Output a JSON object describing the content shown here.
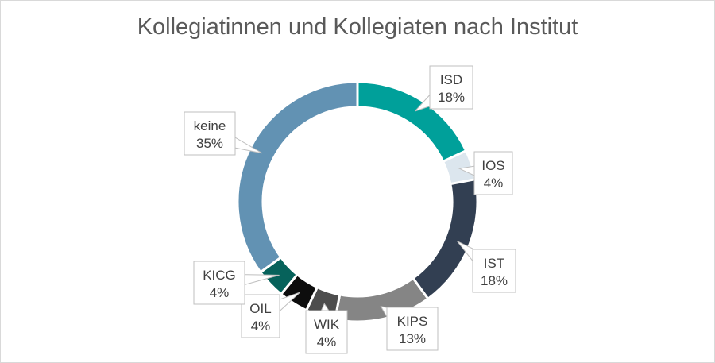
{
  "chart_data": {
    "type": "pie",
    "variant": "doughnut",
    "title": "Kollegiatinnen und Kollegiaten nach Institut",
    "legend": "none",
    "slices": [
      {
        "label": "ISD",
        "value": 18,
        "value_label": "18%",
        "color": "#00a09a"
      },
      {
        "label": "IOS",
        "value": 4,
        "value_label": "4%",
        "color": "#dce6ee"
      },
      {
        "label": "IST",
        "value": 18,
        "value_label": "18%",
        "color": "#323f52"
      },
      {
        "label": "KIPS",
        "value": 13,
        "value_label": "13%",
        "color": "#858585"
      },
      {
        "label": "WIK",
        "value": 4,
        "value_label": "4%",
        "color": "#4d4d4d"
      },
      {
        "label": "OIL",
        "value": 4,
        "value_label": "4%",
        "color": "#0d0d0d"
      },
      {
        "label": "KICG",
        "value": 4,
        "value_label": "4%",
        "color": "#06625b"
      },
      {
        "label": "keine",
        "value": 35,
        "value_label": "35%",
        "color": "#6292b3"
      }
    ]
  }
}
